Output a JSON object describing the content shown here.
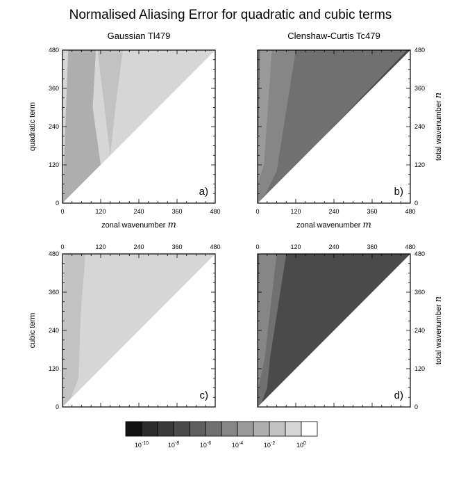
{
  "title": "Normalised Aliasing Error for quadratic and cubic terms",
  "colors": {
    "background": "#ffffff",
    "frame": "#000000",
    "levels": [
      "#111111",
      "#2b2b2b",
      "#3a3a3a",
      "#4a4a4a",
      "#5e5e5e",
      "#707070",
      "#868686",
      "#9a9a9a",
      "#aeaeae",
      "#c2c2c2",
      "#d6d6d6",
      "#ffffff"
    ]
  },
  "chart_data": [
    {
      "id": "a",
      "type": "heatmap",
      "title": "Gaussian Tl479",
      "panel_label": "a)",
      "xlabel": "zonal wavenumber",
      "xlabel_symbol": "m",
      "ylabel": "quadratic term",
      "ylabel_right": "",
      "x_ticks": [
        "0",
        "120",
        "240",
        "360",
        "480"
      ],
      "x_ticks_top": [],
      "y_ticks": [
        "0",
        "120",
        "240",
        "360",
        "480"
      ],
      "y_ticks_right": [],
      "xlim": [
        0,
        480
      ],
      "ylim": [
        0,
        480
      ],
      "background_level": "10^-1",
      "regions": [
        {
          "level": "10^-3",
          "points": [
            [
              0,
              0
            ],
            [
              18,
              480
            ],
            [
              105,
              480
            ],
            [
              95,
              300
            ],
            [
              120,
              120
            ],
            [
              60,
              60
            ]
          ]
        },
        {
          "level": "10^-2",
          "points": [
            [
              110,
              480
            ],
            [
              190,
              480
            ],
            [
              170,
              330
            ],
            [
              150,
              150
            ]
          ]
        }
      ]
    },
    {
      "id": "b",
      "type": "heatmap",
      "title": "Clenshaw-Curtis Tc479",
      "panel_label": "b)",
      "xlabel": "zonal wavenumber",
      "xlabel_symbol": "m",
      "ylabel": "",
      "ylabel_right": "total wavenumber",
      "ylabel_right_symbol": "n",
      "x_ticks": [
        "0",
        "120",
        "240",
        "360",
        "480"
      ],
      "x_ticks_top": [],
      "y_ticks": [],
      "y_ticks_right": [
        "0",
        "120",
        "240",
        "360",
        "480"
      ],
      "xlim": [
        0,
        480
      ],
      "ylim": [
        0,
        480
      ],
      "background_level": "10^-6",
      "regions": [
        {
          "level": "10^-5",
          "points": [
            [
              0,
              0
            ],
            [
              10,
              480
            ],
            [
              120,
              480
            ],
            [
              60,
              100
            ],
            [
              25,
              30
            ]
          ]
        },
        {
          "level": "10^-4",
          "points": [
            [
              0,
              60
            ],
            [
              8,
              480
            ],
            [
              45,
              480
            ],
            [
              20,
              120
            ]
          ]
        },
        {
          "level": "10^-8",
          "points": [
            [
              0,
              0
            ],
            [
              480,
              480
            ],
            [
              470,
              480
            ],
            [
              6,
              0
            ]
          ]
        }
      ]
    },
    {
      "id": "c",
      "type": "heatmap",
      "title": "",
      "panel_label": "c)",
      "xlabel": "",
      "ylabel": "cubic term",
      "ylabel_right": "",
      "x_ticks": [],
      "x_ticks_top": [
        "0",
        "120",
        "240",
        "360",
        "480"
      ],
      "y_ticks": [
        "0",
        "120",
        "240",
        "360",
        "480"
      ],
      "y_ticks_right": [],
      "xlim": [
        0,
        480
      ],
      "ylim": [
        0,
        480
      ],
      "background_level": "10^-1",
      "regions": [
        {
          "level": "10^-2",
          "points": [
            [
              0,
              0
            ],
            [
              6,
              480
            ],
            [
              72,
              480
            ],
            [
              58,
              300
            ],
            [
              50,
              90
            ],
            [
              25,
              25
            ]
          ]
        }
      ]
    },
    {
      "id": "d",
      "type": "heatmap",
      "title": "",
      "panel_label": "d)",
      "xlabel": "",
      "ylabel": "",
      "ylabel_right": "total wavenumber",
      "ylabel_right_symbol": "n",
      "x_ticks": [],
      "x_ticks_top": [
        "0",
        "120",
        "240",
        "360",
        "480"
      ],
      "y_ticks": [],
      "y_ticks_right": [
        "0",
        "120",
        "240",
        "360",
        "480"
      ],
      "xlim": [
        0,
        480
      ],
      "ylim": [
        0,
        480
      ],
      "background_level": "10^-8",
      "regions": [
        {
          "level": "10^-6",
          "points": [
            [
              0,
              0
            ],
            [
              5,
              480
            ],
            [
              90,
              480
            ],
            [
              40,
              160
            ],
            [
              30,
              60
            ],
            [
              12,
              12
            ]
          ]
        },
        {
          "level": "10^-5",
          "points": [
            [
              0,
              50
            ],
            [
              4,
              480
            ],
            [
              60,
              480
            ],
            [
              22,
              150
            ]
          ]
        }
      ]
    }
  ],
  "colorbar": {
    "labels": [
      {
        "base": "10",
        "exp": "-10"
      },
      {
        "base": "10",
        "exp": "-8"
      },
      {
        "base": "10",
        "exp": "-6"
      },
      {
        "base": "10",
        "exp": "-4"
      },
      {
        "base": "10",
        "exp": "-2"
      },
      {
        "base": "10",
        "exp": "0"
      }
    ]
  }
}
